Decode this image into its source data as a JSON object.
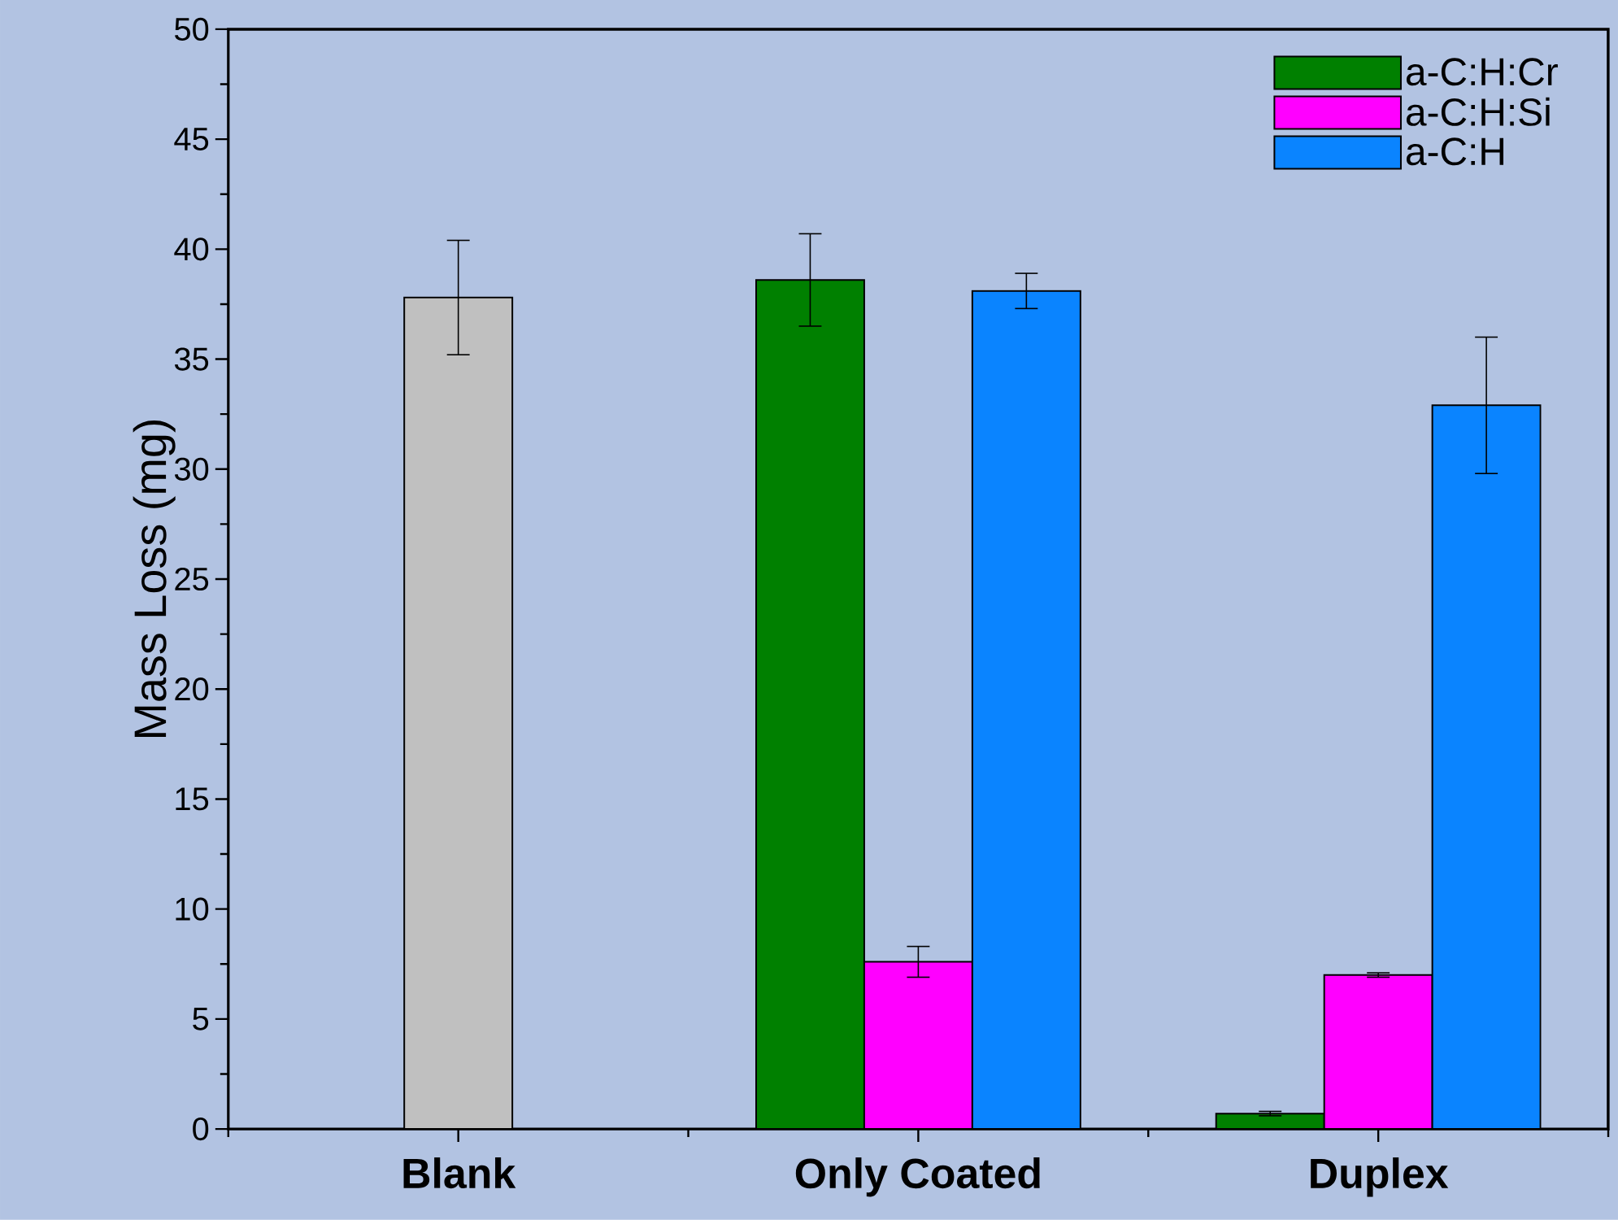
{
  "chart_data": {
    "type": "bar",
    "ylabel": "Mass Loss (mg)",
    "categories": [
      "Blank",
      "Only Coated",
      "Duplex"
    ],
    "series": [
      {
        "color": "#c0c0c0",
        "values": [
          37.8,
          null,
          null
        ],
        "errors": [
          2.6,
          null,
          null
        ]
      },
      {
        "name": "a-C:H:Cr",
        "color": "#008000",
        "values": [
          null,
          38.6,
          0.7
        ],
        "errors": [
          null,
          2.1,
          0.1
        ]
      },
      {
        "name": "a-C:H:Si",
        "color": "#ff00ff",
        "values": [
          null,
          7.6,
          7.0
        ],
        "errors": [
          null,
          0.7,
          0.1
        ]
      },
      {
        "name": "a-C:H",
        "color": "#0a84ff",
        "values": [
          null,
          38.1,
          32.9
        ],
        "errors": [
          null,
          0.8,
          3.1
        ]
      }
    ],
    "ylim": [
      0,
      50
    ],
    "yticks": [
      0,
      5,
      10,
      15,
      20,
      25,
      30,
      35,
      40,
      45,
      50
    ],
    "legend": "top right",
    "grid": false
  }
}
